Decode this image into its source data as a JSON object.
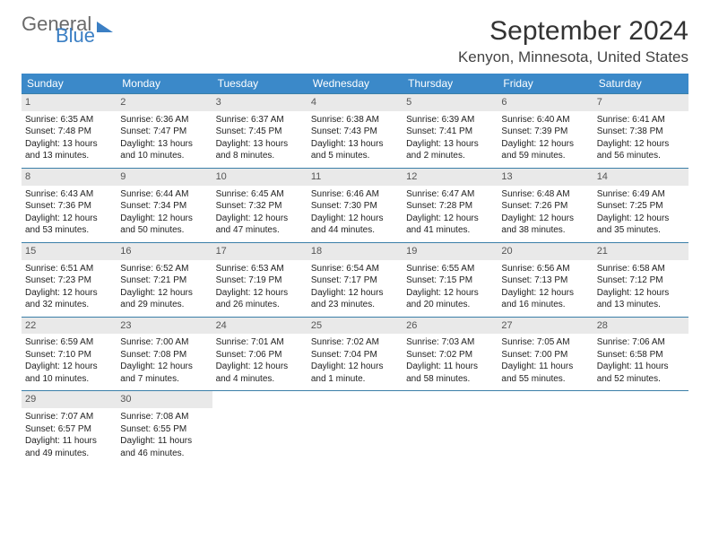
{
  "logo": {
    "line1": "General",
    "line2": "Blue"
  },
  "title": "September 2024",
  "location": "Kenyon, Minnesota, United States",
  "colors": {
    "header_bg": "#3b89c9",
    "header_text": "#ffffff",
    "daynum_bg": "#e9e9e9",
    "row_border": "#3b7fa8",
    "logo_gray": "#6a6a6a",
    "logo_blue": "#3b7fc4"
  },
  "weekdays": [
    "Sunday",
    "Monday",
    "Tuesday",
    "Wednesday",
    "Thursday",
    "Friday",
    "Saturday"
  ],
  "weeks": [
    [
      {
        "n": "1",
        "sr": "Sunrise: 6:35 AM",
        "ss": "Sunset: 7:48 PM",
        "d1": "Daylight: 13 hours",
        "d2": "and 13 minutes."
      },
      {
        "n": "2",
        "sr": "Sunrise: 6:36 AM",
        "ss": "Sunset: 7:47 PM",
        "d1": "Daylight: 13 hours",
        "d2": "and 10 minutes."
      },
      {
        "n": "3",
        "sr": "Sunrise: 6:37 AM",
        "ss": "Sunset: 7:45 PM",
        "d1": "Daylight: 13 hours",
        "d2": "and 8 minutes."
      },
      {
        "n": "4",
        "sr": "Sunrise: 6:38 AM",
        "ss": "Sunset: 7:43 PM",
        "d1": "Daylight: 13 hours",
        "d2": "and 5 minutes."
      },
      {
        "n": "5",
        "sr": "Sunrise: 6:39 AM",
        "ss": "Sunset: 7:41 PM",
        "d1": "Daylight: 13 hours",
        "d2": "and 2 minutes."
      },
      {
        "n": "6",
        "sr": "Sunrise: 6:40 AM",
        "ss": "Sunset: 7:39 PM",
        "d1": "Daylight: 12 hours",
        "d2": "and 59 minutes."
      },
      {
        "n": "7",
        "sr": "Sunrise: 6:41 AM",
        "ss": "Sunset: 7:38 PM",
        "d1": "Daylight: 12 hours",
        "d2": "and 56 minutes."
      }
    ],
    [
      {
        "n": "8",
        "sr": "Sunrise: 6:43 AM",
        "ss": "Sunset: 7:36 PM",
        "d1": "Daylight: 12 hours",
        "d2": "and 53 minutes."
      },
      {
        "n": "9",
        "sr": "Sunrise: 6:44 AM",
        "ss": "Sunset: 7:34 PM",
        "d1": "Daylight: 12 hours",
        "d2": "and 50 minutes."
      },
      {
        "n": "10",
        "sr": "Sunrise: 6:45 AM",
        "ss": "Sunset: 7:32 PM",
        "d1": "Daylight: 12 hours",
        "d2": "and 47 minutes."
      },
      {
        "n": "11",
        "sr": "Sunrise: 6:46 AM",
        "ss": "Sunset: 7:30 PM",
        "d1": "Daylight: 12 hours",
        "d2": "and 44 minutes."
      },
      {
        "n": "12",
        "sr": "Sunrise: 6:47 AM",
        "ss": "Sunset: 7:28 PM",
        "d1": "Daylight: 12 hours",
        "d2": "and 41 minutes."
      },
      {
        "n": "13",
        "sr": "Sunrise: 6:48 AM",
        "ss": "Sunset: 7:26 PM",
        "d1": "Daylight: 12 hours",
        "d2": "and 38 minutes."
      },
      {
        "n": "14",
        "sr": "Sunrise: 6:49 AM",
        "ss": "Sunset: 7:25 PM",
        "d1": "Daylight: 12 hours",
        "d2": "and 35 minutes."
      }
    ],
    [
      {
        "n": "15",
        "sr": "Sunrise: 6:51 AM",
        "ss": "Sunset: 7:23 PM",
        "d1": "Daylight: 12 hours",
        "d2": "and 32 minutes."
      },
      {
        "n": "16",
        "sr": "Sunrise: 6:52 AM",
        "ss": "Sunset: 7:21 PM",
        "d1": "Daylight: 12 hours",
        "d2": "and 29 minutes."
      },
      {
        "n": "17",
        "sr": "Sunrise: 6:53 AM",
        "ss": "Sunset: 7:19 PM",
        "d1": "Daylight: 12 hours",
        "d2": "and 26 minutes."
      },
      {
        "n": "18",
        "sr": "Sunrise: 6:54 AM",
        "ss": "Sunset: 7:17 PM",
        "d1": "Daylight: 12 hours",
        "d2": "and 23 minutes."
      },
      {
        "n": "19",
        "sr": "Sunrise: 6:55 AM",
        "ss": "Sunset: 7:15 PM",
        "d1": "Daylight: 12 hours",
        "d2": "and 20 minutes."
      },
      {
        "n": "20",
        "sr": "Sunrise: 6:56 AM",
        "ss": "Sunset: 7:13 PM",
        "d1": "Daylight: 12 hours",
        "d2": "and 16 minutes."
      },
      {
        "n": "21",
        "sr": "Sunrise: 6:58 AM",
        "ss": "Sunset: 7:12 PM",
        "d1": "Daylight: 12 hours",
        "d2": "and 13 minutes."
      }
    ],
    [
      {
        "n": "22",
        "sr": "Sunrise: 6:59 AM",
        "ss": "Sunset: 7:10 PM",
        "d1": "Daylight: 12 hours",
        "d2": "and 10 minutes."
      },
      {
        "n": "23",
        "sr": "Sunrise: 7:00 AM",
        "ss": "Sunset: 7:08 PM",
        "d1": "Daylight: 12 hours",
        "d2": "and 7 minutes."
      },
      {
        "n": "24",
        "sr": "Sunrise: 7:01 AM",
        "ss": "Sunset: 7:06 PM",
        "d1": "Daylight: 12 hours",
        "d2": "and 4 minutes."
      },
      {
        "n": "25",
        "sr": "Sunrise: 7:02 AM",
        "ss": "Sunset: 7:04 PM",
        "d1": "Daylight: 12 hours",
        "d2": "and 1 minute."
      },
      {
        "n": "26",
        "sr": "Sunrise: 7:03 AM",
        "ss": "Sunset: 7:02 PM",
        "d1": "Daylight: 11 hours",
        "d2": "and 58 minutes."
      },
      {
        "n": "27",
        "sr": "Sunrise: 7:05 AM",
        "ss": "Sunset: 7:00 PM",
        "d1": "Daylight: 11 hours",
        "d2": "and 55 minutes."
      },
      {
        "n": "28",
        "sr": "Sunrise: 7:06 AM",
        "ss": "Sunset: 6:58 PM",
        "d1": "Daylight: 11 hours",
        "d2": "and 52 minutes."
      }
    ],
    [
      {
        "n": "29",
        "sr": "Sunrise: 7:07 AM",
        "ss": "Sunset: 6:57 PM",
        "d1": "Daylight: 11 hours",
        "d2": "and 49 minutes."
      },
      {
        "n": "30",
        "sr": "Sunrise: 7:08 AM",
        "ss": "Sunset: 6:55 PM",
        "d1": "Daylight: 11 hours",
        "d2": "and 46 minutes."
      },
      {
        "empty": true
      },
      {
        "empty": true
      },
      {
        "empty": true
      },
      {
        "empty": true
      },
      {
        "empty": true
      }
    ]
  ]
}
